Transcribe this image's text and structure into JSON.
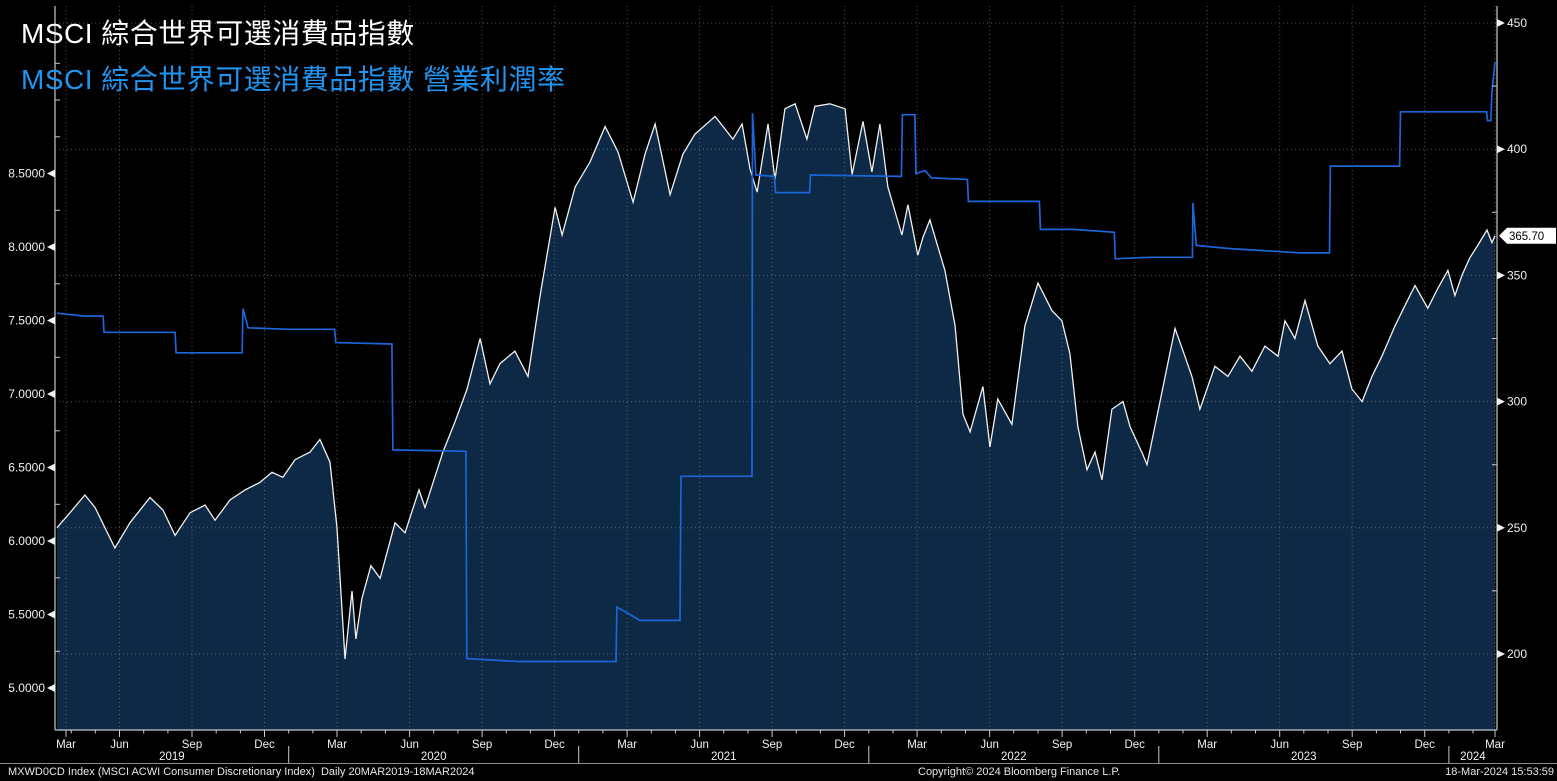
{
  "titles": {
    "primary": "MSCI 綜合世界可選消費品指數",
    "secondary": "MSCI 綜合世界可選消費品指數 營業利潤率"
  },
  "status_bar": {
    "left": "MXWD0CD Index (MSCI ACWI Consumer Discretionary Index)  Daily 20MAR2019-18MAR2024",
    "center": "Copyright© 2024 Bloomberg Finance L.P.",
    "right": "18-Mar-2024 15:53:59"
  },
  "colors": {
    "background": "#000000",
    "area_fill": "#0d2945",
    "index_line": "#f0f0f0",
    "margin_line": "#1c66d9",
    "title_blue": "#1e95f2",
    "axis": "#c8c8c8",
    "grid": "#9a9a9a",
    "label_text": "#f0f0f0"
  },
  "chart_data": {
    "type": "line",
    "title": "MSCI 綜合世界可選消費品指數",
    "subtitle": "MSCI 綜合世界可選消費品指數 營業利潤率",
    "x_axis": {
      "unit": "months since 2019-03-01",
      "range_label": "20MAR2019-18MAR2024",
      "quarter_labels": [
        "Mar",
        "Jun",
        "Sep",
        "Dec"
      ],
      "years": [
        "2019",
        "2020",
        "2021",
        "2022",
        "2023",
        "2024"
      ],
      "grid": "quarterly"
    },
    "left_axis": {
      "series": "operating margin",
      "labels": [
        "8.5000",
        "8.0000",
        "7.5000",
        "7.0000",
        "6.5000",
        "6.0000",
        "5.5000",
        "5.0000"
      ],
      "values": [
        8.5,
        8.0,
        7.5,
        7.0,
        6.5,
        6.0,
        5.5,
        5.0
      ],
      "minor_step": 0.25
    },
    "right_axis": {
      "series": "index level",
      "labels": [
        "450",
        "400",
        "350",
        "300",
        "250",
        "200"
      ],
      "values": [
        450,
        400,
        350,
        300,
        250,
        200
      ],
      "minor_step": 25,
      "last_value": "365.70"
    },
    "series": [
      {
        "name": "MSCI 綜合世界可選消費品指數",
        "axis": "right",
        "style": "area",
        "color": "#f0f0f0",
        "fill": "#0d2945",
        "points": [
          [
            0.41,
            250
          ],
          [
            0.95,
            256
          ],
          [
            1.57,
            263
          ],
          [
            1.99,
            258
          ],
          [
            2.81,
            242
          ],
          [
            3.43,
            252
          ],
          [
            4.26,
            262
          ],
          [
            4.8,
            257
          ],
          [
            5.3,
            247
          ],
          [
            5.92,
            256
          ],
          [
            6.54,
            259
          ],
          [
            6.95,
            253
          ],
          [
            7.57,
            261
          ],
          [
            8.19,
            265
          ],
          [
            8.81,
            268
          ],
          [
            9.31,
            272
          ],
          [
            9.76,
            270
          ],
          [
            10.26,
            277
          ],
          [
            10.88,
            280
          ],
          [
            11.29,
            285
          ],
          [
            11.71,
            276
          ],
          [
            12.0,
            250
          ],
          [
            12.33,
            198
          ],
          [
            12.62,
            225
          ],
          [
            12.78,
            206
          ],
          [
            13.03,
            222
          ],
          [
            13.4,
            235
          ],
          [
            13.78,
            230
          ],
          [
            14.4,
            252
          ],
          [
            14.81,
            248
          ],
          [
            15.39,
            265
          ],
          [
            15.64,
            258
          ],
          [
            16.38,
            280
          ],
          [
            16.88,
            292
          ],
          [
            17.38,
            305
          ],
          [
            17.92,
            325
          ],
          [
            18.33,
            307
          ],
          [
            18.74,
            315
          ],
          [
            19.36,
            320
          ],
          [
            19.9,
            310
          ],
          [
            20.4,
            342
          ],
          [
            21.02,
            377
          ],
          [
            21.31,
            366
          ],
          [
            21.85,
            385
          ],
          [
            22.47,
            395
          ],
          [
            23.09,
            409
          ],
          [
            23.62,
            399
          ],
          [
            24.25,
            379
          ],
          [
            24.74,
            398
          ],
          [
            25.16,
            410
          ],
          [
            25.78,
            382
          ],
          [
            26.31,
            398
          ],
          [
            26.81,
            406
          ],
          [
            27.64,
            413
          ],
          [
            28.38,
            404
          ],
          [
            28.76,
            410
          ],
          [
            29.09,
            392
          ],
          [
            29.38,
            383
          ],
          [
            29.83,
            410
          ],
          [
            30.12,
            388
          ],
          [
            30.53,
            416
          ],
          [
            30.95,
            418
          ],
          [
            31.44,
            404
          ],
          [
            31.77,
            417
          ],
          [
            32.39,
            418
          ],
          [
            33.02,
            416
          ],
          [
            33.31,
            390
          ],
          [
            33.76,
            411
          ],
          [
            34.13,
            391
          ],
          [
            34.46,
            410
          ],
          [
            34.79,
            385
          ],
          [
            35.37,
            366
          ],
          [
            35.62,
            378
          ],
          [
            36.03,
            358
          ],
          [
            36.24,
            365
          ],
          [
            36.53,
            372
          ],
          [
            37.15,
            352
          ],
          [
            37.57,
            330
          ],
          [
            37.9,
            295
          ],
          [
            38.19,
            288
          ],
          [
            38.72,
            306
          ],
          [
            39.01,
            282
          ],
          [
            39.34,
            301
          ],
          [
            39.92,
            291
          ],
          [
            40.46,
            330
          ],
          [
            41.0,
            347
          ],
          [
            41.58,
            336
          ],
          [
            41.99,
            332
          ],
          [
            42.32,
            319
          ],
          [
            42.65,
            290
          ],
          [
            43.03,
            273
          ],
          [
            43.36,
            280
          ],
          [
            43.65,
            269
          ],
          [
            44.06,
            297
          ],
          [
            44.52,
            300
          ],
          [
            44.81,
            290
          ],
          [
            45.34,
            279
          ],
          [
            45.51,
            275
          ],
          [
            46.05,
            300
          ],
          [
            46.67,
            329
          ],
          [
            47.08,
            318
          ],
          [
            47.37,
            310
          ],
          [
            47.7,
            297
          ],
          [
            48.32,
            314
          ],
          [
            48.86,
            310
          ],
          [
            49.36,
            318
          ],
          [
            49.85,
            312
          ],
          [
            50.39,
            322
          ],
          [
            50.93,
            318
          ],
          [
            51.22,
            332
          ],
          [
            51.63,
            325
          ],
          [
            52.05,
            340
          ],
          [
            52.58,
            322
          ],
          [
            53.08,
            315
          ],
          [
            53.58,
            320
          ],
          [
            53.99,
            305
          ],
          [
            54.41,
            300
          ],
          [
            54.82,
            310
          ],
          [
            55.23,
            318
          ],
          [
            55.77,
            330
          ],
          [
            56.18,
            338
          ],
          [
            56.6,
            346
          ],
          [
            57.13,
            337
          ],
          [
            57.55,
            345
          ],
          [
            57.96,
            352
          ],
          [
            58.25,
            342
          ],
          [
            58.54,
            350
          ],
          [
            58.87,
            357
          ],
          [
            59.2,
            362
          ],
          [
            59.58,
            368
          ],
          [
            59.78,
            363
          ],
          [
            59.91,
            365.7
          ]
        ]
      },
      {
        "name": "MSCI 綜合世界可選消費品指數 營業利潤率",
        "axis": "left",
        "style": "line",
        "color": "#1c66d9",
        "points": [
          [
            0.41,
            7.55
          ],
          [
            1.57,
            7.53
          ],
          [
            2.32,
            7.53
          ],
          [
            2.36,
            7.42
          ],
          [
            5.3,
            7.42
          ],
          [
            5.34,
            7.28
          ],
          [
            8.07,
            7.28
          ],
          [
            8.11,
            7.58
          ],
          [
            8.32,
            7.45
          ],
          [
            10.0,
            7.44
          ],
          [
            11.9,
            7.44
          ],
          [
            11.95,
            7.35
          ],
          [
            14.27,
            7.34
          ],
          [
            14.31,
            6.62
          ],
          [
            17.33,
            6.61
          ],
          [
            17.37,
            5.2
          ],
          [
            19.5,
            5.18
          ],
          [
            23.54,
            5.18
          ],
          [
            23.58,
            5.55
          ],
          [
            24.12,
            5.5
          ],
          [
            24.53,
            5.46
          ],
          [
            26.19,
            5.46
          ],
          [
            26.23,
            6.44
          ],
          [
            29.17,
            6.44
          ],
          [
            29.19,
            8.91
          ],
          [
            29.33,
            8.49
          ],
          [
            30.1,
            8.48
          ],
          [
            30.14,
            8.37
          ],
          [
            31.55,
            8.37
          ],
          [
            31.59,
            8.49
          ],
          [
            35.35,
            8.48
          ],
          [
            35.39,
            8.9
          ],
          [
            35.91,
            8.9
          ],
          [
            35.95,
            8.5
          ],
          [
            36.32,
            8.52
          ],
          [
            36.6,
            8.47
          ],
          [
            38.08,
            8.46
          ],
          [
            38.12,
            8.31
          ],
          [
            41.06,
            8.31
          ],
          [
            41.1,
            8.12
          ],
          [
            42.5,
            8.12
          ],
          [
            44.16,
            8.1
          ],
          [
            44.2,
            7.92
          ],
          [
            45.6,
            7.93
          ],
          [
            47.39,
            7.93
          ],
          [
            47.41,
            8.3
          ],
          [
            47.55,
            8.01
          ],
          [
            48.9,
            7.99
          ],
          [
            51.8,
            7.96
          ],
          [
            53.06,
            7.96
          ],
          [
            53.1,
            8.55
          ],
          [
            55.96,
            8.55
          ],
          [
            56.0,
            8.92
          ],
          [
            58.0,
            8.92
          ],
          [
            59.56,
            8.92
          ],
          [
            59.6,
            8.86
          ],
          [
            59.74,
            8.86
          ],
          [
            59.78,
            9.05
          ],
          [
            59.91,
            9.26
          ]
        ]
      }
    ]
  }
}
